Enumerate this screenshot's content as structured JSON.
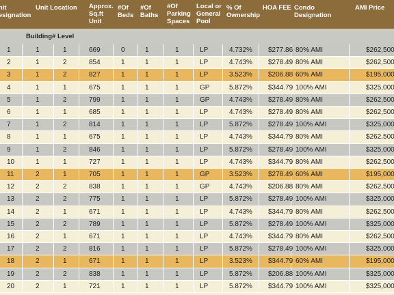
{
  "header": {
    "columns": [
      "Unit\nDesignation",
      "Unit Location",
      "Approx.\nSq.ft\nUnit",
      "#Of\nBeds",
      "#Of\nBaths",
      "#Of\nParking\nSpaces",
      "Local or\nGeneral\nPool",
      "% Of\nOwnership",
      "HOA FEE",
      "Condo\nDesignation",
      "AMI Price"
    ],
    "subcolumns": [
      "Building#",
      "Level"
    ]
  },
  "rows": [
    [
      "1",
      "1",
      "1",
      "669",
      "0",
      "1",
      "1",
      "LP",
      "4.732%",
      "$277.86",
      "80% AMI",
      "$262,500"
    ],
    [
      "2",
      "1",
      "2",
      "854",
      "1",
      "1",
      "1",
      "LP",
      "4.743%",
      "$278.49",
      "80% AMI",
      "$262,500"
    ],
    [
      "3",
      "1",
      "2",
      "827",
      "1",
      "1",
      "1",
      "LP",
      "3.523%",
      "$206.88",
      "60% AMI",
      "$195,000"
    ],
    [
      "4",
      "1",
      "1",
      "675",
      "1",
      "1",
      "1",
      "GP",
      "5.872%",
      "$344.79",
      "100% AMI",
      "$325,000"
    ],
    [
      "5",
      "1",
      "2",
      "799",
      "1",
      "1",
      "1",
      "GP",
      "4.743%",
      "$278.49",
      "80% AMI",
      "$262,500"
    ],
    [
      "6",
      "1",
      "1",
      "685",
      "1",
      "1",
      "1",
      "LP",
      "4.743%",
      "$278.49",
      "80% AMI",
      "$262,500"
    ],
    [
      "7",
      "1",
      "2",
      "814",
      "1",
      "1",
      "1",
      "LP",
      "5.872%",
      "$278.49",
      "100% AMI",
      "$325,000"
    ],
    [
      "8",
      "1",
      "1",
      "675",
      "1",
      "1",
      "1",
      "LP",
      "4.743%",
      "$344.79",
      "80% AMI",
      "$262,500"
    ],
    [
      "9",
      "1",
      "2",
      "846",
      "1",
      "1",
      "1",
      "LP",
      "5.872%",
      "$278.49",
      "100% AMI",
      "$325,000"
    ],
    [
      "10",
      "1",
      "1",
      "727",
      "1",
      "1",
      "1",
      "LP",
      "4.743%",
      "$344.79",
      "80% AMI",
      "$262,500"
    ],
    [
      "11",
      "2",
      "1",
      "705",
      "1",
      "1",
      "1",
      "GP",
      "3.523%",
      "$278.49",
      "60% AMI",
      "$195,000"
    ],
    [
      "12",
      "2",
      "2",
      "838",
      "1",
      "1",
      "1",
      "GP",
      "4.743%",
      "$206.88",
      "80% AMI",
      "$262,500"
    ],
    [
      "13",
      "2",
      "2",
      "775",
      "1",
      "1",
      "1",
      "LP",
      "5.872%",
      "$278.49",
      "100% AMI",
      "$325,000"
    ],
    [
      "14",
      "2",
      "1",
      "671",
      "1",
      "1",
      "1",
      "LP",
      "4.743%",
      "$344.79",
      "80% AMI",
      "$262,500"
    ],
    [
      "15",
      "2",
      "2",
      "789",
      "1",
      "1",
      "1",
      "LP",
      "5.872%",
      "$278.49",
      "100% AMI",
      "$325,000"
    ],
    [
      "16",
      "2",
      "1",
      "671",
      "1",
      "1",
      "1",
      "LP",
      "4.743%",
      "$344.79",
      "80% AMI",
      "$262,500"
    ],
    [
      "17",
      "2",
      "2",
      "816",
      "1",
      "1",
      "1",
      "LP",
      "5.872%",
      "$278.49",
      "100% AMI",
      "$325,000"
    ],
    [
      "18",
      "2",
      "1",
      "671",
      "1",
      "1",
      "1",
      "LP",
      "3.523%",
      "$344.79",
      "60% AMI",
      "$195,000"
    ],
    [
      "19",
      "2",
      "2",
      "838",
      "1",
      "1",
      "1",
      "LP",
      "5.872%",
      "$206.88",
      "100% AMI",
      "$325,000"
    ],
    [
      "20",
      "2",
      "1",
      "721",
      "1",
      "1",
      "1",
      "LP",
      "5.872%",
      "$344.79",
      "100% AMI",
      "$325,000"
    ]
  ]
}
